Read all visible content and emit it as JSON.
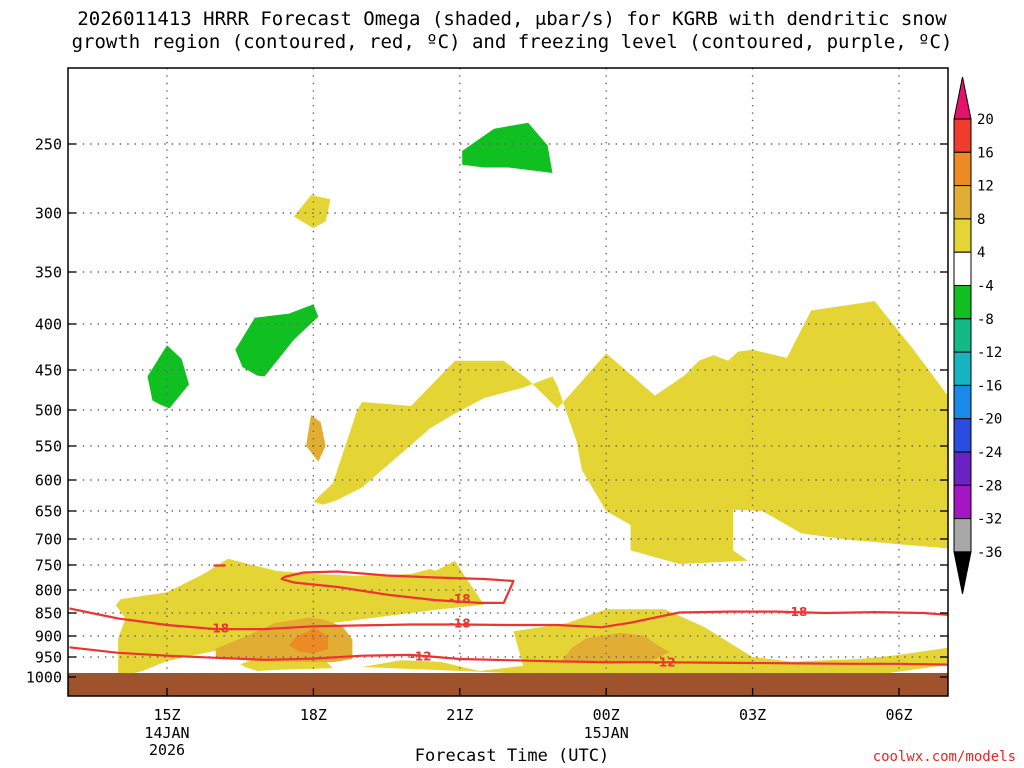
{
  "chart_data": {
    "type": "time-height cross-section (filled contour)",
    "title_line1": "2026011413 HRRR Forecast Omega (shaded, μbar/s) for KGRB with dendritic snow",
    "title_line2": "growth region (contoured, red, ºC) and freezing level (contoured, purple, ºC)",
    "xlabel": "Forecast Time (UTC)",
    "x_ticks": [
      {
        "hour": 15,
        "label": "15Z",
        "sub": [
          "14JAN",
          "2026"
        ]
      },
      {
        "hour": 18,
        "label": "18Z",
        "sub": []
      },
      {
        "hour": 21,
        "label": "21Z",
        "sub": []
      },
      {
        "hour": 24,
        "label": "00Z",
        "sub": [
          "15JAN"
        ]
      },
      {
        "hour": 27,
        "label": "03Z",
        "sub": []
      },
      {
        "hour": 30,
        "label": "06Z",
        "sub": []
      }
    ],
    "xlim_hours": [
      13.0,
      31.0
    ],
    "y_ticks": [
      {
        "p": 250,
        "label": "250"
      },
      {
        "p": 300,
        "label": "300"
      },
      {
        "p": 350,
        "label": "350"
      },
      {
        "p": 400,
        "label": "400"
      },
      {
        "p": 450,
        "label": "450"
      },
      {
        "p": 500,
        "label": "500"
      },
      {
        "p": 550,
        "label": "550"
      },
      {
        "p": 600,
        "label": "600"
      },
      {
        "p": 650,
        "label": "650"
      },
      {
        "p": 700,
        "label": "700"
      },
      {
        "p": 750,
        "label": "750"
      },
      {
        "p": 800,
        "label": "800"
      },
      {
        "p": 850,
        "label": "850"
      },
      {
        "p": 900,
        "label": "900"
      },
      {
        "p": 950,
        "label": "950"
      },
      {
        "p": 1000,
        "label": "1000"
      }
    ],
    "ylabel": "",
    "colorbar": {
      "labels": [
        "20",
        "16",
        "12",
        "8",
        "4",
        "-4",
        "-8",
        "-12",
        "-16",
        "-20",
        "-24",
        "-28",
        "-32",
        "-36"
      ],
      "bins": [
        {
          "range": "> 20",
          "color": "#e4126a"
        },
        {
          "range": "16 to 20",
          "color": "#f03c2d"
        },
        {
          "range": "12 to 16",
          "color": "#ec8a26"
        },
        {
          "range": "8 to 12",
          "color": "#e2ad33"
        },
        {
          "range": "4 to 8",
          "color": "#e4d534"
        },
        {
          "range": "-4 to 4",
          "color": "#ffffff"
        },
        {
          "range": "-8 to -4",
          "color": "#10c020"
        },
        {
          "range": "-12 to -8",
          "color": "#13ba86"
        },
        {
          "range": "-16 to -12",
          "color": "#15b4c0"
        },
        {
          "range": "-20 to -16",
          "color": "#1a8ae8"
        },
        {
          "range": "-24 to -20",
          "color": "#2a4ce0"
        },
        {
          "range": "-28 to -24",
          "color": "#6a22c4"
        },
        {
          "range": "-32 to -28",
          "color": "#a416c2"
        },
        {
          "range": "-36 to -32",
          "color": "#a8a8a8"
        },
        {
          "range": "< -36",
          "color": "#000000"
        }
      ]
    },
    "regions": [
      {
        "name": "upward-motion region 1",
        "omega_bin": "4 to 8",
        "points": [
          [
            14.0,
            1000
          ],
          [
            14.0,
            905
          ],
          [
            14.15,
            862
          ],
          [
            13.95,
            833
          ],
          [
            14.05,
            820
          ],
          [
            15.0,
            805
          ],
          [
            15.75,
            768
          ],
          [
            16.25,
            738
          ],
          [
            16.75,
            750
          ],
          [
            17.25,
            762
          ],
          [
            18.0,
            768
          ],
          [
            19.0,
            772
          ],
          [
            20.0,
            768
          ],
          [
            20.4,
            758
          ],
          [
            20.5,
            762
          ],
          [
            20.9,
            742
          ],
          [
            21.1,
            772
          ],
          [
            21.5,
            832
          ],
          [
            20.6,
            842
          ],
          [
            19.4,
            858
          ],
          [
            17.8,
            880
          ],
          [
            17.0,
            900
          ],
          [
            16.0,
            935
          ],
          [
            15.0,
            960
          ],
          [
            14.5,
            985
          ]
        ]
      },
      {
        "name": "upward-motion region 2",
        "omega_bin": "4 to 8",
        "points": [
          [
            16.85,
            985
          ],
          [
            16.6,
            975
          ],
          [
            16.5,
            968
          ],
          [
            16.8,
            955
          ],
          [
            18.2,
            953
          ],
          [
            18.4,
            978
          ],
          [
            17.3,
            982
          ]
        ]
      },
      {
        "name": "upward-motion region 3",
        "omega_bin": "4 to 8",
        "points": [
          [
            19.0,
            975
          ],
          [
            19.8,
            958
          ],
          [
            20.6,
            962
          ],
          [
            21.4,
            985
          ],
          [
            22.3,
            972
          ],
          [
            22.1,
            890
          ],
          [
            23.2,
            872
          ],
          [
            24.0,
            842
          ],
          [
            25.2,
            842
          ],
          [
            26.0,
            880
          ],
          [
            27.0,
            950
          ],
          [
            27.8,
            962
          ],
          [
            28.5,
            958
          ],
          [
            29.2,
            955
          ],
          [
            30.0,
            945
          ],
          [
            31.0,
            928
          ],
          [
            31.0,
            970
          ],
          [
            29.2,
            1000
          ],
          [
            24.0,
            1000
          ]
        ]
      },
      {
        "name": "upward-motion region 4",
        "omega_bin": "4 to 8",
        "points": [
          [
            18.0,
            635
          ],
          [
            18.4,
            605
          ],
          [
            18.9,
            500
          ],
          [
            19.0,
            490
          ],
          [
            20.0,
            495
          ],
          [
            20.9,
            440
          ],
          [
            21.9,
            440
          ],
          [
            22.4,
            462
          ],
          [
            23.0,
            498
          ],
          [
            23.3,
            478
          ],
          [
            24.0,
            432
          ],
          [
            25.0,
            482
          ],
          [
            25.6,
            457
          ],
          [
            25.9,
            440
          ],
          [
            26.2,
            434
          ],
          [
            26.5,
            440
          ],
          [
            26.7,
            430
          ],
          [
            27.0,
            428
          ],
          [
            27.7,
            437
          ],
          [
            28.2,
            387
          ],
          [
            29.5,
            378
          ],
          [
            30.3,
            428
          ],
          [
            31.0,
            482
          ],
          [
            31.0,
            718
          ],
          [
            30.0,
            710
          ],
          [
            29.0,
            702
          ],
          [
            28.0,
            690
          ],
          [
            27.2,
            650
          ],
          [
            26.6,
            648
          ],
          [
            26.6,
            722
          ],
          [
            26.9,
            742
          ],
          [
            25.5,
            748
          ],
          [
            24.5,
            722
          ],
          [
            24.5,
            675
          ],
          [
            24.0,
            650
          ],
          [
            23.5,
            585
          ],
          [
            23.4,
            545
          ],
          [
            23.0,
            470
          ],
          [
            22.9,
            458
          ],
          [
            22.3,
            472
          ],
          [
            21.5,
            485
          ],
          [
            20.9,
            505
          ],
          [
            20.4,
            525
          ],
          [
            19.0,
            612
          ],
          [
            18.5,
            632
          ],
          [
            18.2,
            640
          ]
        ]
      },
      {
        "name": "upward-motion region 5",
        "omega_bin": "4 to 8",
        "points": [
          [
            17.6,
            303
          ],
          [
            17.95,
            287
          ],
          [
            18.35,
            290
          ],
          [
            18.25,
            307
          ],
          [
            18.0,
            313
          ]
        ]
      },
      {
        "name": "upward-motion region 6",
        "omega_bin": "8 to 12",
        "points": [
          [
            16.0,
            953
          ],
          [
            16.0,
            930
          ],
          [
            16.6,
            902
          ],
          [
            17.2,
            872
          ],
          [
            17.9,
            860
          ],
          [
            18.2,
            864
          ],
          [
            18.6,
            880
          ],
          [
            18.8,
            908
          ],
          [
            18.8,
            955
          ],
          [
            18.4,
            963
          ],
          [
            17.5,
            962
          ],
          [
            16.9,
            960
          ]
        ]
      },
      {
        "name": "upward-motion region 7",
        "omega_bin": "8 to 12",
        "points": [
          [
            23.1,
            958
          ],
          [
            23.3,
            928
          ],
          [
            23.6,
            905
          ],
          [
            24.3,
            893
          ],
          [
            24.8,
            900
          ],
          [
            25.0,
            918
          ],
          [
            25.3,
            938
          ],
          [
            24.9,
            962
          ],
          [
            24.0,
            968
          ]
        ]
      },
      {
        "name": "upward-motion region 8",
        "omega_bin": "8 to 12",
        "points": [
          [
            17.85,
            550
          ],
          [
            17.95,
            507
          ],
          [
            18.15,
            517
          ],
          [
            18.25,
            550
          ],
          [
            18.1,
            573
          ]
        ]
      },
      {
        "name": "upward-motion region 9",
        "omega_bin": "12 to 16",
        "points": [
          [
            17.5,
            922
          ],
          [
            17.65,
            902
          ],
          [
            17.9,
            890
          ],
          [
            18.0,
            880
          ],
          [
            18.3,
            902
          ],
          [
            18.3,
            932
          ],
          [
            18.0,
            941
          ],
          [
            17.7,
            937
          ]
        ]
      },
      {
        "name": "downward-motion region 1",
        "omega_bin": "-8 to -4",
        "points": [
          [
            21.05,
            255
          ],
          [
            21.7,
            240
          ],
          [
            22.4,
            236
          ],
          [
            22.8,
            251
          ],
          [
            22.9,
            271
          ],
          [
            22.0,
            267
          ],
          [
            21.5,
            267
          ],
          [
            21.05,
            265
          ]
        ]
      },
      {
        "name": "downward-motion region 2",
        "omega_bin": "-8 to -4",
        "points": [
          [
            16.4,
            428
          ],
          [
            16.8,
            394
          ],
          [
            17.5,
            390
          ],
          [
            18.0,
            381
          ],
          [
            18.1,
            393
          ],
          [
            17.6,
            417
          ],
          [
            17.0,
            458
          ],
          [
            16.85,
            457
          ],
          [
            16.55,
            447
          ]
        ]
      },
      {
        "name": "downward-motion region 3",
        "omega_bin": "-8 to -4",
        "points": [
          [
            14.6,
            458
          ],
          [
            15.0,
            423
          ],
          [
            15.3,
            438
          ],
          [
            15.45,
            468
          ],
          [
            15.05,
            498
          ],
          [
            14.85,
            493
          ],
          [
            14.7,
            488
          ]
        ]
      }
    ],
    "contours": [
      {
        "name": "-18 °C isotherm (lower DGZ boundary)",
        "points": [
          [
            13.0,
            840
          ],
          [
            14.0,
            862
          ],
          [
            15.0,
            876
          ],
          [
            16.0,
            885
          ],
          [
            17.0,
            885
          ],
          [
            18.0,
            879
          ],
          [
            19.0,
            877
          ],
          [
            20.0,
            875
          ],
          [
            21.0,
            875
          ],
          [
            22.0,
            876
          ],
          [
            23.0,
            876
          ],
          [
            23.9,
            881
          ],
          [
            24.5,
            871
          ],
          [
            25.5,
            849
          ],
          [
            26.5,
            847
          ],
          [
            27.5,
            847
          ],
          [
            28.5,
            850
          ],
          [
            29.5,
            848
          ],
          [
            30.5,
            850
          ],
          [
            31.0,
            854
          ]
        ]
      },
      {
        "name": "-18 °C isotherm (upper DGZ loop)",
        "points": [
          [
            17.4,
            774
          ],
          [
            17.8,
            765
          ],
          [
            18.5,
            763
          ],
          [
            19.5,
            771
          ],
          [
            20.5,
            775
          ],
          [
            21.5,
            778
          ],
          [
            22.1,
            782
          ],
          [
            21.9,
            828
          ],
          [
            21.4,
            828
          ],
          [
            20.5,
            822
          ],
          [
            19.5,
            810
          ],
          [
            18.5,
            794
          ],
          [
            17.6,
            785
          ],
          [
            17.35,
            778
          ],
          [
            17.4,
            774
          ]
        ]
      },
      {
        "name": "-18 °C isotherm (small segment)",
        "points": [
          [
            15.95,
            751
          ],
          [
            16.2,
            751
          ]
        ]
      },
      {
        "name": "-12 °C isotherm",
        "points": [
          [
            13.0,
            927
          ],
          [
            14.0,
            940
          ],
          [
            15.0,
            947
          ],
          [
            16.0,
            952
          ],
          [
            17.0,
            957
          ],
          [
            18.0,
            954
          ],
          [
            19.0,
            947
          ],
          [
            20.0,
            945
          ],
          [
            21.0,
            955
          ],
          [
            22.0,
            958
          ],
          [
            23.0,
            961
          ],
          [
            24.0,
            963
          ],
          [
            25.0,
            963
          ],
          [
            26.0,
            964
          ],
          [
            27.0,
            965
          ],
          [
            28.0,
            966
          ],
          [
            29.0,
            967
          ],
          [
            30.0,
            967
          ],
          [
            31.0,
            969
          ]
        ]
      }
    ],
    "contour_labels": [
      {
        "text": "-18",
        "hour": 16.05,
        "p": 883
      },
      {
        "text": "-18",
        "hour": 21.0,
        "p": 819
      },
      {
        "text": "-18",
        "hour": 21.0,
        "p": 872
      },
      {
        "text": "-18",
        "hour": 27.9,
        "p": 847
      },
      {
        "text": "-12",
        "hour": 20.2,
        "p": 948
      },
      {
        "text": "-12",
        "hour": 25.2,
        "p": 962
      }
    ],
    "terrain_below_p": 990,
    "terrain_color": "#a0522d"
  },
  "credit": "coolwx.com/models"
}
